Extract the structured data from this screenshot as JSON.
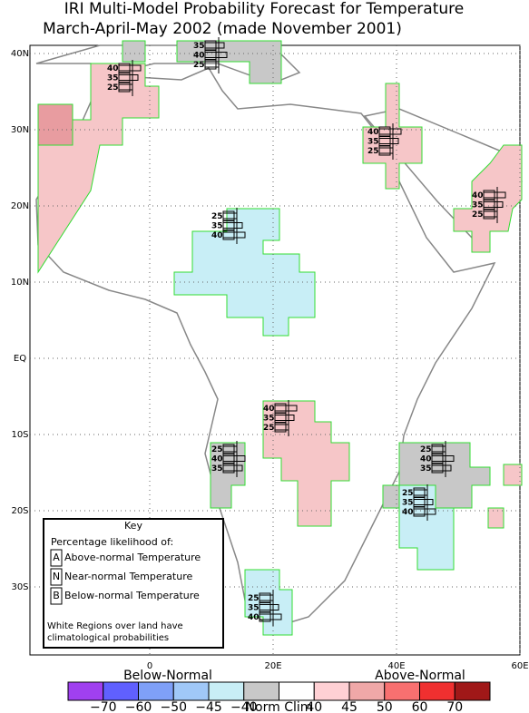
{
  "title": [
    "IRI Multi-Model Probability Forecast for Temperature",
    "March-April-May 2002 (made November 2001)"
  ],
  "lat_labels": [
    "40N",
    "30N",
    "20N",
    "10N",
    "EQ",
    "10S",
    "20S",
    "30S"
  ],
  "lon_labels": [
    "0",
    "20E",
    "40E",
    "60E"
  ],
  "forecasts": [
    {
      "values": [
        40,
        35,
        25
      ]
    },
    {
      "values": [
        35,
        40,
        25
      ]
    },
    {
      "values": [
        40,
        35,
        25
      ]
    },
    {
      "values": [
        40,
        35,
        25
      ]
    },
    {
      "values": [
        25,
        35,
        40
      ]
    },
    {
      "values": [
        40,
        35,
        25
      ]
    },
    {
      "values": [
        25,
        40,
        35
      ]
    },
    {
      "values": [
        25,
        40,
        35
      ]
    },
    {
      "values": [
        25,
        35,
        40
      ]
    },
    {
      "values": [
        25,
        35,
        40
      ]
    }
  ],
  "key": {
    "title": "Key",
    "subtitle": "Percentage likelihood of:",
    "items": [
      {
        "letter": "A",
        "text": "Above-normal Temperature"
      },
      {
        "letter": "N",
        "text": "Near-normal Temperature"
      },
      {
        "letter": "B",
        "text": "Below-normal Temperature"
      }
    ],
    "note": [
      "White Regions over land have",
      "climatological probabilities"
    ]
  },
  "colorbar": {
    "below_label": "Below-Normal",
    "above_label": "Above-Normal",
    "ticks": [
      "−70",
      "−60",
      "−50",
      "−45",
      "−40",
      "Norm Clim",
      "40",
      "45",
      "50",
      "60",
      "70"
    ],
    "colors": [
      "#a040f0",
      "#6060ff",
      "#7fa0f8",
      "#a0c8f8",
      "#c8eef6",
      "#c8c8c8",
      "#ffffff",
      "#ffd0d4",
      "#f0a8a8",
      "#f87070",
      "#f03030",
      "#a01818"
    ]
  }
}
